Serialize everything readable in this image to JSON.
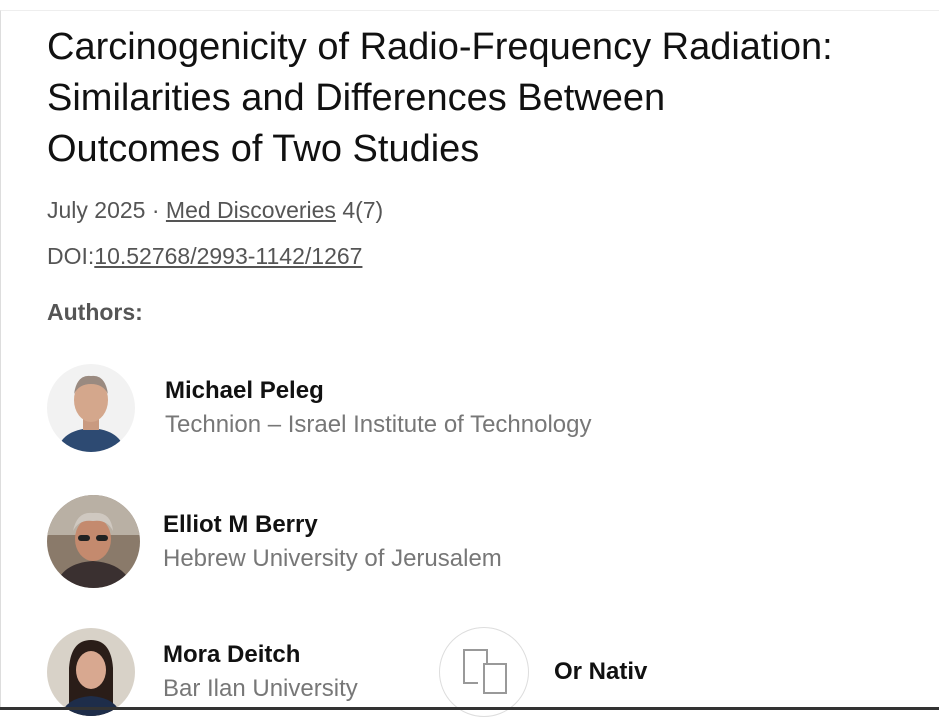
{
  "article": {
    "title_lines": [
      "Carcinogenicity of Radio-Frequency Radiation:",
      "Similarities and Differences Between",
      "Outcomes of Two Studies"
    ],
    "date": "July 2025",
    "separator": "·",
    "journal": "Med Discoveries",
    "issue": "4(7)",
    "doi_label": "DOI:",
    "doi": "10.52768/2993-1142/1267"
  },
  "authors_heading": "Authors:",
  "authors": [
    {
      "name": "Michael Peleg",
      "affiliation": "Technion – Israel Institute of Technology"
    },
    {
      "name": "Elliot M Berry",
      "affiliation": "Hebrew University of Jerusalem"
    },
    {
      "name": "Mora Deitch",
      "affiliation": "Bar Ilan University"
    },
    {
      "name": "Or Nativ",
      "icon": "copy-placeholder-icon"
    }
  ]
}
